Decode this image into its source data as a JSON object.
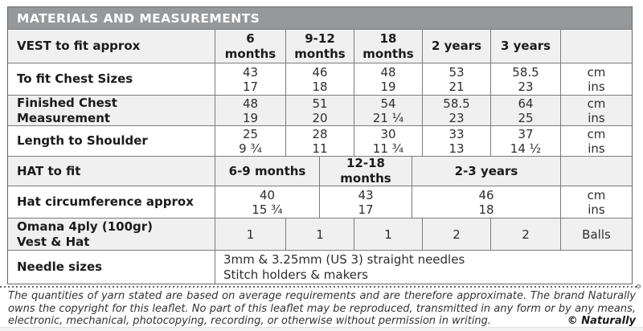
{
  "colors": {
    "title_bar_bg": "#97989a",
    "row_shaded_bg": "#f0f0f0",
    "border": "#7c7c7c",
    "border_dark": "#686868"
  },
  "title_bar": {
    "title": "MATERIALS AND MEASUREMENTS"
  },
  "table": {
    "vest_header": {
      "label": "VEST to fit approx",
      "cols": [
        "6\nmonths",
        "9-12\nmonths",
        "18\nmonths",
        "2 years",
        "3 years"
      ],
      "unit": ""
    },
    "chest": {
      "label": "To fit Chest Sizes",
      "values": [
        "43\n17",
        "46\n18",
        "48\n19",
        "53\n21",
        "58.5\n23"
      ],
      "unit": "cm\nins"
    },
    "finished_chest": {
      "label": "Finished Chest Measurement",
      "values": [
        "48\n19",
        "51\n20",
        "54\n21 ¼",
        "58.5\n23",
        "64\n25"
      ],
      "unit": "cm\nins"
    },
    "length_to_shoulder": {
      "label": "Length to Shoulder",
      "values": [
        "25\n9 ¾",
        "28\n11",
        "30\n11 ¾",
        "33\n13",
        "37\n14 ½"
      ],
      "unit": "cm\nins"
    },
    "hat_header": {
      "label": "HAT to fit",
      "cols": [
        "6-9 months",
        "12-18 months",
        "2-3 years"
      ],
      "unit": ""
    },
    "hat_circumference": {
      "label": "Hat circumference approx",
      "values": [
        "40\n15 ¾",
        "43\n17",
        "46\n18"
      ],
      "unit": "cm\nins"
    },
    "yarn": {
      "label": "Omana 4ply (100gr)\nVest & Hat",
      "values": [
        "1",
        "1",
        "1",
        "2",
        "2"
      ],
      "unit": "Balls"
    },
    "needles": {
      "label": "Needle sizes",
      "value": "3mm & 3.25mm (US 3) straight needles\nStitch holders & makers"
    }
  },
  "footer": {
    "text": "The quantities of yarn stated are based on average requirements and are therefore approximate. The brand Naturally owns the copyright for this leaflet. No part of this leaflet may be reproduced, transmitted in any form or by any means, electronic, mechanical, photocopying, recording, or otherwise without permission in writing.",
    "copyright": "© Naturally"
  }
}
